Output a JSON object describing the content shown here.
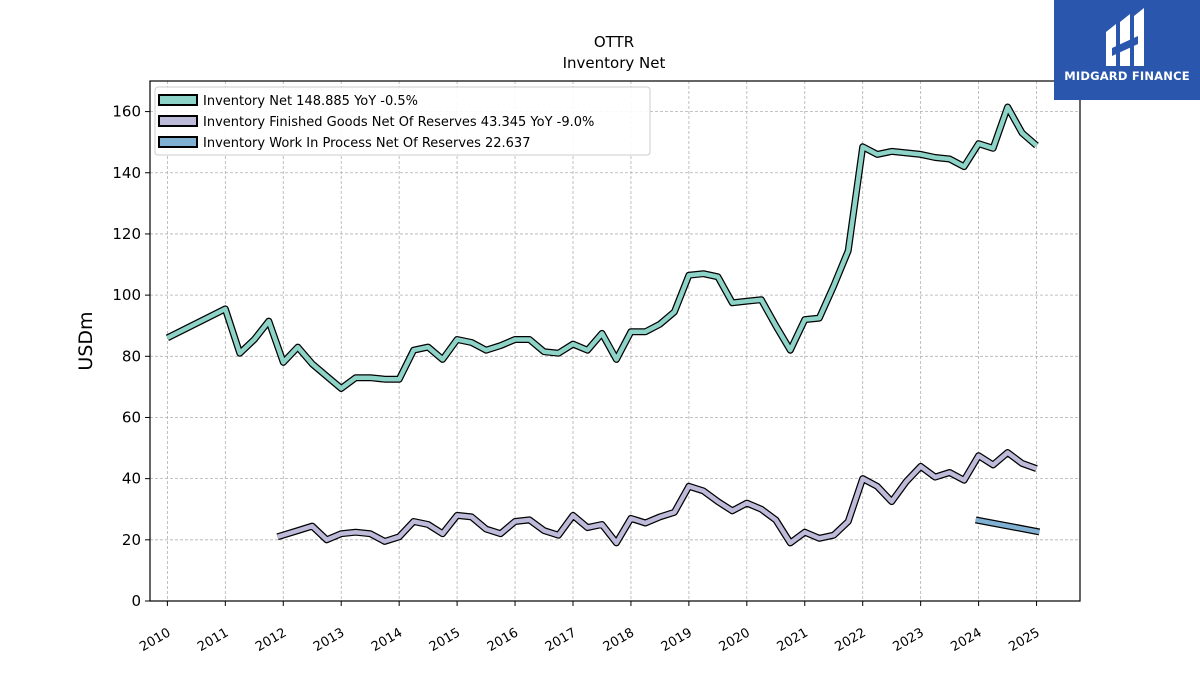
{
  "brand": {
    "name": "MIDGARD FINANCE",
    "color": "#2a57ad"
  },
  "chart_data": {
    "type": "line",
    "title": "OTTR",
    "subtitle": "Inventory Net",
    "ylabel": "USDm",
    "xlabel": "",
    "ylim": [
      0,
      170
    ],
    "yticks": [
      0,
      20,
      40,
      60,
      80,
      100,
      120,
      140,
      160
    ],
    "xlim": [
      2009.7,
      2025.75
    ],
    "xticks": [
      2010,
      2011,
      2012,
      2013,
      2014,
      2015,
      2016,
      2017,
      2018,
      2019,
      2020,
      2021,
      2022,
      2023,
      2024,
      2025
    ],
    "grid": true,
    "legend_position": "top-left",
    "series": [
      {
        "name": "Inventory Net",
        "legend_label": "Inventory Net  148.885 YoY -0.5%",
        "color": "#8dd3c7",
        "points": [
          [
            2010.0,
            86
          ],
          [
            2011.0,
            95.5
          ],
          [
            2011.25,
            81
          ],
          [
            2011.5,
            85.5
          ],
          [
            2011.75,
            91.5
          ],
          [
            2012.0,
            78
          ],
          [
            2012.25,
            83
          ],
          [
            2012.5,
            77.5
          ],
          [
            2012.75,
            73.5
          ],
          [
            2013.0,
            69.5
          ],
          [
            2013.25,
            73
          ],
          [
            2013.5,
            73
          ],
          [
            2013.75,
            72.5
          ],
          [
            2014.0,
            72.5
          ],
          [
            2014.25,
            82
          ],
          [
            2014.5,
            83
          ],
          [
            2014.75,
            79
          ],
          [
            2015.0,
            85.5
          ],
          [
            2015.25,
            84.5
          ],
          [
            2015.5,
            82
          ],
          [
            2015.75,
            83.5
          ],
          [
            2016.0,
            85.5
          ],
          [
            2016.25,
            85.5
          ],
          [
            2016.5,
            81.5
          ],
          [
            2016.75,
            81
          ],
          [
            2017.0,
            84
          ],
          [
            2017.25,
            82
          ],
          [
            2017.5,
            87.5
          ],
          [
            2017.75,
            79
          ],
          [
            2018.0,
            88
          ],
          [
            2018.25,
            88
          ],
          [
            2018.5,
            90.5
          ],
          [
            2018.75,
            94.5
          ],
          [
            2019.0,
            106.5
          ],
          [
            2019.25,
            107
          ],
          [
            2019.5,
            106
          ],
          [
            2019.75,
            97.5
          ],
          [
            2020.0,
            98
          ],
          [
            2020.25,
            98.5
          ],
          [
            2020.5,
            90
          ],
          [
            2020.75,
            82
          ],
          [
            2021.0,
            92
          ],
          [
            2021.25,
            92.5
          ],
          [
            2021.5,
            103
          ],
          [
            2021.75,
            114.5
          ],
          [
            2022.0,
            148.5
          ],
          [
            2022.25,
            146
          ],
          [
            2022.5,
            147
          ],
          [
            2022.75,
            146.5
          ],
          [
            2023.0,
            146
          ],
          [
            2023.25,
            145
          ],
          [
            2023.5,
            144.5
          ],
          [
            2023.75,
            142
          ],
          [
            2024.0,
            149.5
          ],
          [
            2024.25,
            148
          ],
          [
            2024.5,
            161.5
          ],
          [
            2024.75,
            153
          ],
          [
            2025.0,
            148.9
          ]
        ]
      },
      {
        "name": "Inventory Finished Goods Net Of Reserves",
        "legend_label": "Inventory Finished Goods Net Of Reserves  43.345 YoY -9.0%",
        "color": "#bebada",
        "points": [
          [
            2011.9,
            21
          ],
          [
            2012.25,
            23
          ],
          [
            2012.5,
            24.5
          ],
          [
            2012.75,
            20
          ],
          [
            2013.0,
            22
          ],
          [
            2013.25,
            22.5
          ],
          [
            2013.5,
            22
          ],
          [
            2013.75,
            19.5
          ],
          [
            2014.0,
            21
          ],
          [
            2014.25,
            26
          ],
          [
            2014.5,
            25
          ],
          [
            2014.75,
            22
          ],
          [
            2015.0,
            28
          ],
          [
            2015.25,
            27.5
          ],
          [
            2015.5,
            23.5
          ],
          [
            2015.75,
            22
          ],
          [
            2016.0,
            26
          ],
          [
            2016.25,
            26.5
          ],
          [
            2016.5,
            23
          ],
          [
            2016.75,
            21.5
          ],
          [
            2017.0,
            28
          ],
          [
            2017.25,
            24
          ],
          [
            2017.5,
            25
          ],
          [
            2017.75,
            19
          ],
          [
            2018.0,
            27
          ],
          [
            2018.25,
            25.5
          ],
          [
            2018.5,
            27.5
          ],
          [
            2018.75,
            29
          ],
          [
            2019.0,
            37.5
          ],
          [
            2019.25,
            36
          ],
          [
            2019.5,
            32.5
          ],
          [
            2019.75,
            29.5
          ],
          [
            2020.0,
            32
          ],
          [
            2020.25,
            30
          ],
          [
            2020.5,
            26.5
          ],
          [
            2020.75,
            19
          ],
          [
            2021.0,
            22.5
          ],
          [
            2021.25,
            20.5
          ],
          [
            2021.5,
            21.5
          ],
          [
            2021.75,
            26
          ],
          [
            2022.0,
            40
          ],
          [
            2022.25,
            37.5
          ],
          [
            2022.5,
            32.5
          ],
          [
            2022.75,
            39
          ],
          [
            2023.0,
            44
          ],
          [
            2023.25,
            40.5
          ],
          [
            2023.5,
            42
          ],
          [
            2023.75,
            39.5
          ],
          [
            2024.0,
            47.5
          ],
          [
            2024.25,
            44.5
          ],
          [
            2024.5,
            48.5
          ],
          [
            2024.75,
            45
          ],
          [
            2025.0,
            43.3
          ]
        ]
      },
      {
        "name": "Inventory Work In Process Net Of Reserves",
        "legend_label": "Inventory Work In Process Net Of Reserves  22.637",
        "color": "#80b1d3",
        "points": [
          [
            2023.95,
            26.5
          ],
          [
            2025.05,
            22.6
          ]
        ]
      }
    ]
  }
}
